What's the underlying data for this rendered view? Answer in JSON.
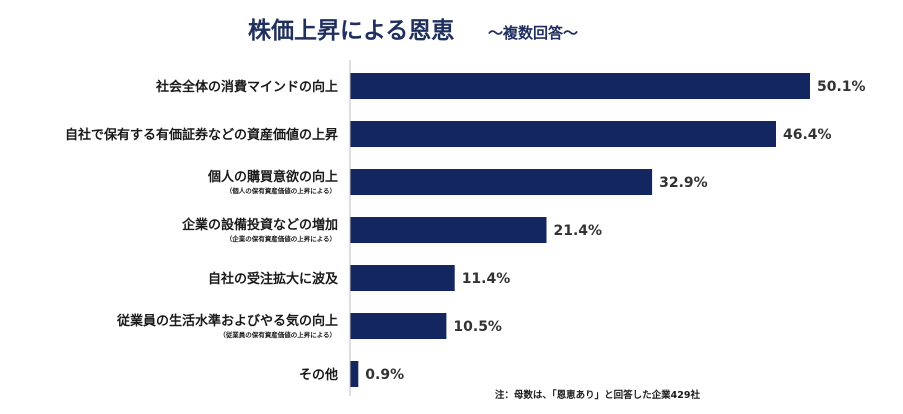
{
  "title": "株価上昇による恩恵",
  "subtitle": "～複数回答～",
  "footnote": "注：母数は、「恩恵あり」と回答した企業429社",
  "colors": {
    "bar": "#132660",
    "axis": "#bfbfbf",
    "title": "#1f2f5e"
  },
  "chart_data": {
    "type": "bar",
    "orientation": "horizontal",
    "categories": [
      "社会全体の消費マインドの向上",
      "自社で保有する有価証券などの資産価値の上昇",
      "個人の購買意欲の向上",
      "企業の設備投資などの増加",
      "自社の受注拡大に波及",
      "従業員の生活水準およびやる気の向上",
      "その他"
    ],
    "sublabels": [
      "",
      "",
      "（個人の保有資産価値の上昇による）",
      "（企業の保有資産価値の上昇による）",
      "",
      "（従業員の保有資産価値の上昇による）",
      ""
    ],
    "values": [
      50.1,
      46.4,
      32.9,
      21.4,
      11.4,
      10.5,
      0.9
    ],
    "value_labels": [
      "50.1%",
      "46.4%",
      "32.9%",
      "21.4%",
      "11.4%",
      "10.5%",
      "0.9%"
    ],
    "xlim": [
      0,
      55
    ],
    "grid": false
  }
}
